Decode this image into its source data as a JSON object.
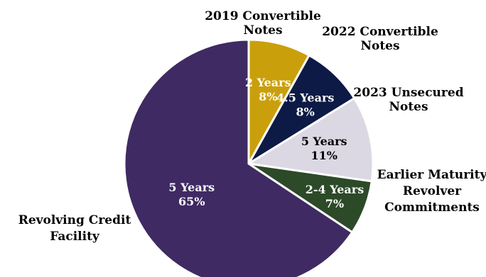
{
  "chart_data": {
    "type": "pie",
    "title": "",
    "start": "12 o'clock, clockwise",
    "slices": [
      {
        "name": "2019 Convertible Notes",
        "label_lines": [
          "2019 Convertible",
          "Notes"
        ],
        "term": "2 Years",
        "value": 8,
        "value_label": "8%",
        "color": "#C9A00B",
        "text_color": "#ffffff"
      },
      {
        "name": "2022 Convertible Notes",
        "label_lines": [
          "2022 Convertible",
          "Notes"
        ],
        "term": "4.5 Years",
        "value": 8,
        "value_label": "8%",
        "color": "#0C1A45",
        "text_color": "#ffffff"
      },
      {
        "name": "2023 Unsecured Notes",
        "label_lines": [
          "2023 Unsecured",
          "Notes"
        ],
        "term": "5 Years",
        "value": 11,
        "value_label": "11%",
        "color": "#DCD8E3",
        "text_color": "#000000"
      },
      {
        "name": "Earlier Maturity Revolver Commitments",
        "label_lines": [
          "Earlier Maturity",
          "Revolver",
          "Commitments"
        ],
        "term": "2-4 Years",
        "value": 7,
        "value_label": "7%",
        "color": "#2C4A28",
        "text_color": "#ffffff"
      },
      {
        "name": "Revolving Credit Facility",
        "label_lines": [
          "Revolving Credit",
          "Facility"
        ],
        "term": "5 Years",
        "value": 65,
        "value_label": "65%",
        "color": "#3F2A63",
        "text_color": "#ffffff"
      }
    ]
  }
}
